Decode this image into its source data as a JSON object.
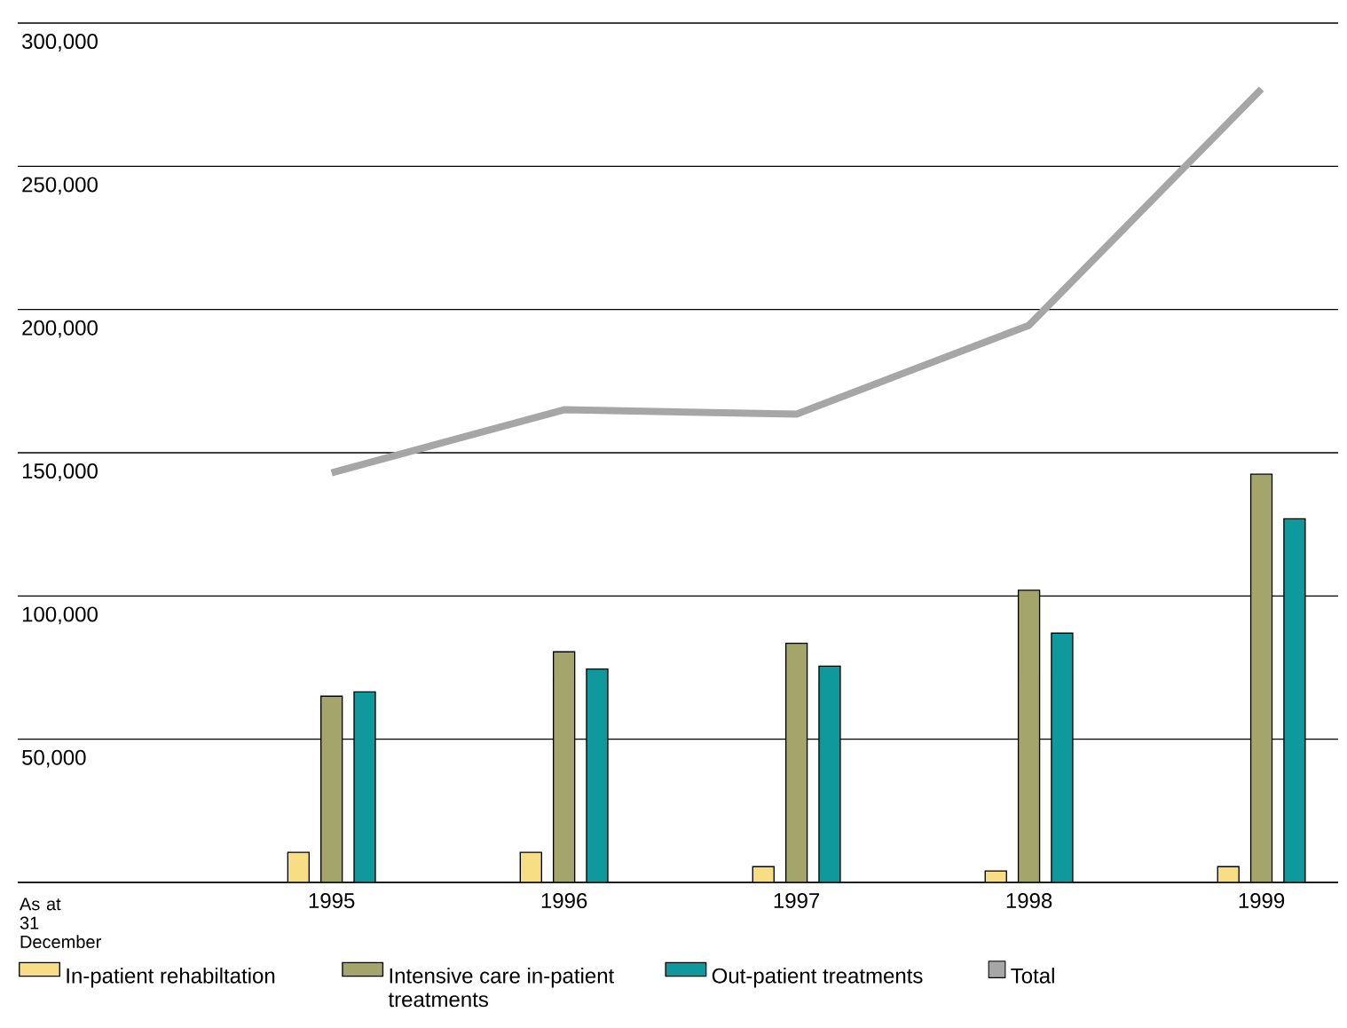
{
  "chart_data": {
    "type": "bar",
    "xlabel": "As at 31 December",
    "categories": [
      "1995",
      "1996",
      "1997",
      "1998",
      "1999"
    ],
    "series": [
      {
        "name": "In-patient rehabiltation",
        "color": "#f7de84",
        "values": [
          10500,
          10500,
          5500,
          4000,
          5500
        ]
      },
      {
        "name": "Intensive care in-patient treatments",
        "color": "#a3a56b",
        "values": [
          65000,
          80500,
          83500,
          102000,
          142500
        ]
      },
      {
        "name": "Out-patient treatments",
        "color": "#10999c",
        "values": [
          66500,
          74500,
          75500,
          87000,
          127000
        ]
      },
      {
        "name": "Total",
        "type": "line",
        "color": "#a6a6a6",
        "values": [
          143000,
          165000,
          163500,
          194500,
          277000
        ]
      }
    ],
    "ylim": [
      0,
      300000
    ],
    "yticks": [
      {
        "value": 0,
        "label": null
      },
      {
        "value": 50000,
        "label": "50,000"
      },
      {
        "value": 100000,
        "label": "100,000"
      },
      {
        "value": 150000,
        "label": "150,000"
      },
      {
        "value": 200000,
        "label": "200,000"
      },
      {
        "value": 250000,
        "label": "250,000"
      },
      {
        "value": 300000,
        "label": "300,000"
      }
    ],
    "grid": "y",
    "legend": "bottom",
    "marker": "none"
  }
}
